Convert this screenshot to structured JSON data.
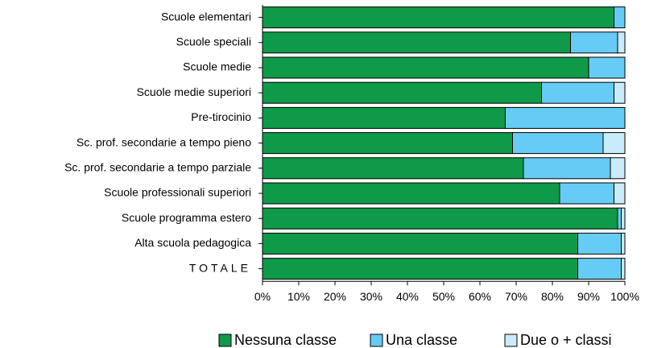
{
  "chart_data": {
    "type": "stacked-barh",
    "categories": [
      "Scuole elementari",
      "Scuole speciali",
      "Scuole medie",
      "Scuole medie superiori",
      "Pre-tirocinio",
      "Sc. prof. secondarie a tempo pieno",
      "Sc. prof. secondarie a tempo parziale",
      "Scuole professionali superiori",
      "Scuole programma estero",
      "Alta scuola pedagogica",
      "TOTALE"
    ],
    "series": [
      {
        "name": "Nessuna classe",
        "color": "#0e9a48",
        "values": [
          97,
          85,
          90,
          77,
          67,
          69,
          72,
          82,
          98,
          87,
          87
        ]
      },
      {
        "name": "Una classe",
        "color": "#66ccf5",
        "values": [
          3,
          13,
          10,
          20,
          33,
          25,
          24,
          15,
          1,
          12,
          12
        ]
      },
      {
        "name": "Due o + classi",
        "color": "#c8ecfb",
        "values": [
          0,
          2,
          0,
          3,
          0,
          6,
          4,
          3,
          1,
          1,
          1
        ]
      }
    ],
    "xlim": [
      0,
      100
    ],
    "xticks": [
      {
        "value": 0,
        "label": "0%"
      },
      {
        "value": 10,
        "label": "10%"
      },
      {
        "value": 20,
        "label": "20%"
      },
      {
        "value": 30,
        "label": "30%"
      },
      {
        "value": 40,
        "label": "40%"
      },
      {
        "value": 50,
        "label": "50%"
      },
      {
        "value": 60,
        "label": "60%"
      },
      {
        "value": 70,
        "label": "70%"
      },
      {
        "value": 80,
        "label": "80%"
      },
      {
        "value": 90,
        "label": "90%"
      },
      {
        "value": 100,
        "label": "100%"
      }
    ],
    "legend": "bottom"
  }
}
